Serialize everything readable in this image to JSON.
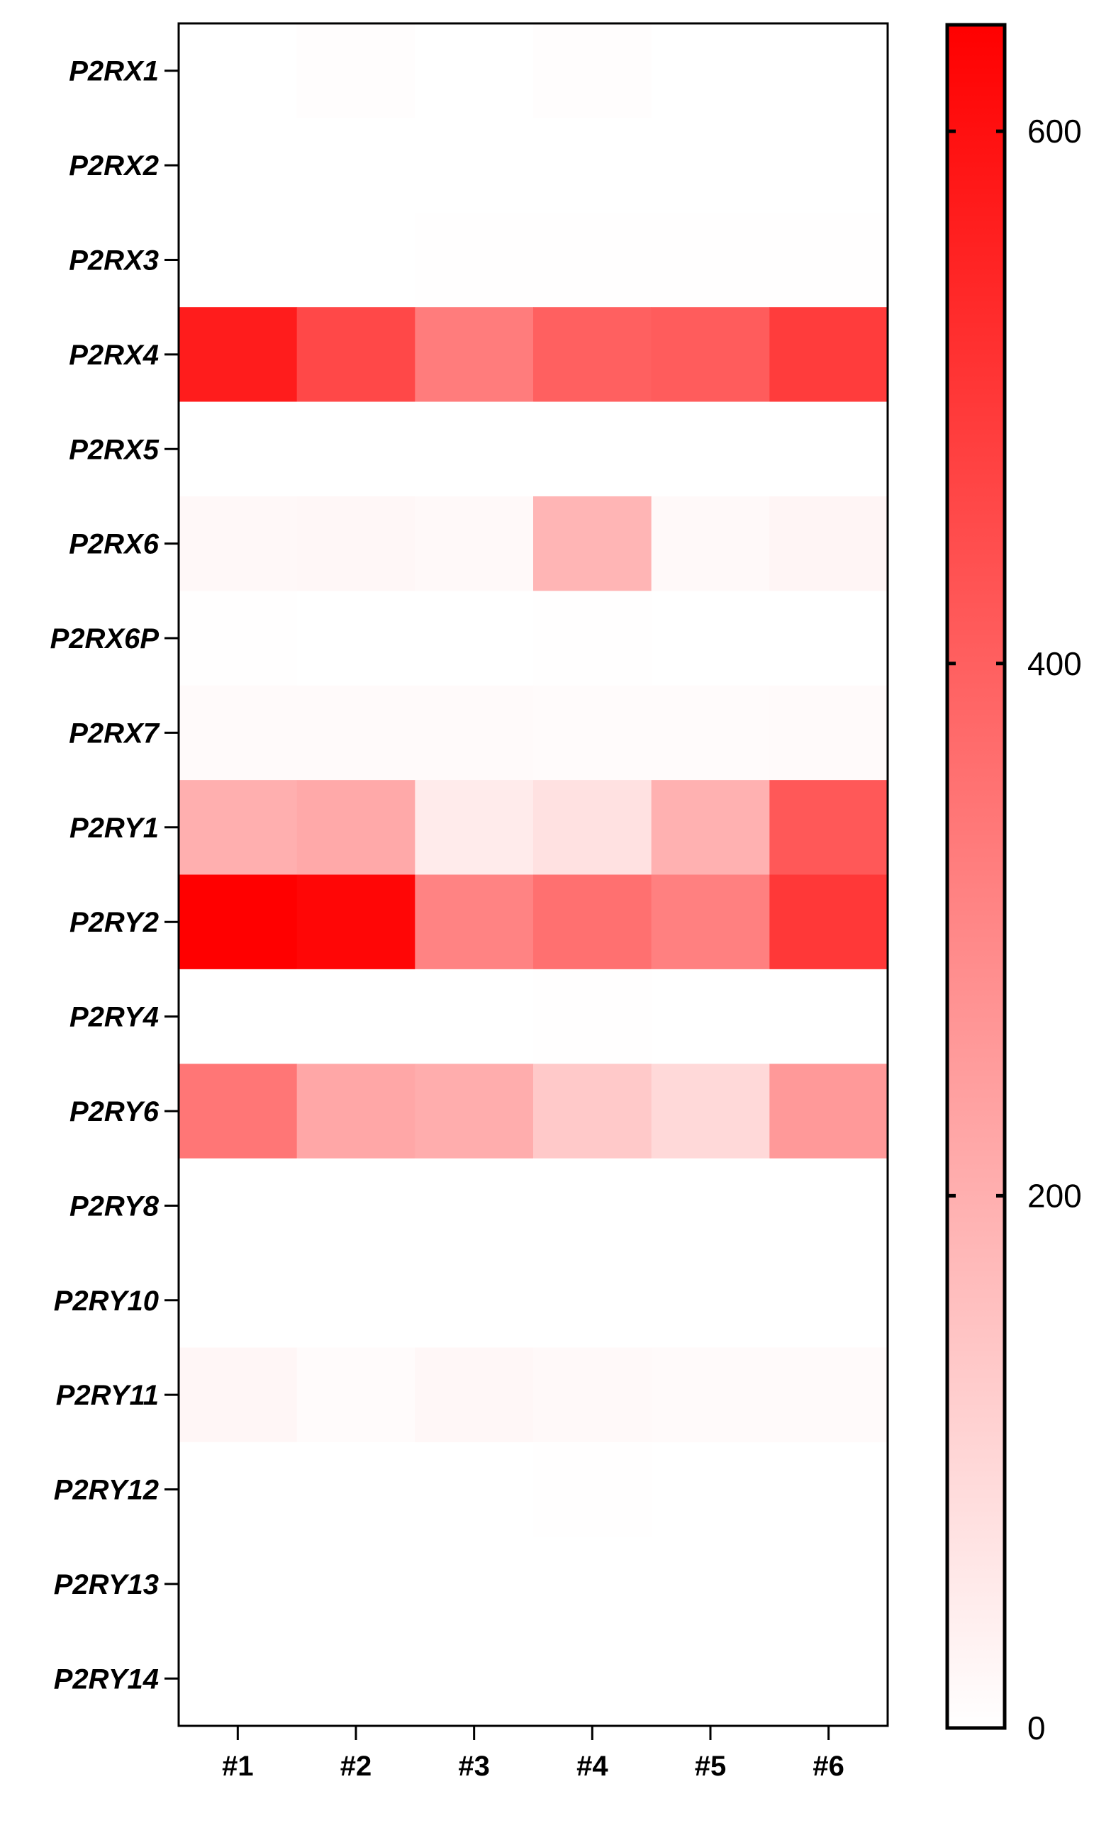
{
  "chart_data": {
    "type": "heatmap",
    "title": "",
    "xlabel": "",
    "ylabel": "",
    "columns": [
      "#1",
      "#2",
      "#3",
      "#4",
      "#5",
      "#6"
    ],
    "rows": [
      "P2RX1",
      "P2RX2",
      "P2RX3",
      "P2RX4",
      "P2RX5",
      "P2RX6",
      "P2RX6P",
      "P2RX7",
      "P2RY1",
      "P2RY2",
      "P2RY4",
      "P2RY6",
      "P2RY8",
      "P2RY10",
      "P2RY11",
      "P2RY12",
      "P2RY13",
      "P2RY14"
    ],
    "values": [
      [
        0,
        5,
        0,
        4,
        0,
        0
      ],
      [
        0,
        0,
        0,
        0,
        0,
        0
      ],
      [
        0,
        0,
        3,
        2,
        2,
        2
      ],
      [
        570,
        460,
        330,
        400,
        410,
        490
      ],
      [
        0,
        0,
        0,
        0,
        0,
        0
      ],
      [
        18,
        20,
        14,
        185,
        15,
        25
      ],
      [
        3,
        0,
        0,
        3,
        0,
        0
      ],
      [
        12,
        12,
        12,
        10,
        10,
        12
      ],
      [
        200,
        215,
        50,
        75,
        195,
        420
      ],
      [
        640,
        625,
        310,
        360,
        320,
        500
      ],
      [
        0,
        0,
        0,
        3,
        0,
        0
      ],
      [
        345,
        220,
        205,
        135,
        95,
        255
      ],
      [
        0,
        0,
        0,
        0,
        0,
        0
      ],
      [
        0,
        0,
        0,
        0,
        0,
        0
      ],
      [
        22,
        10,
        20,
        15,
        12,
        12
      ],
      [
        0,
        0,
        0,
        3,
        0,
        0
      ],
      [
        0,
        0,
        0,
        0,
        0,
        0
      ],
      [
        0,
        0,
        0,
        0,
        0,
        0
      ]
    ],
    "colorbar": {
      "min": 0,
      "max": 640,
      "ticks": [
        0,
        200,
        400,
        600
      ],
      "tick_labels": [
        "0",
        "200",
        "400",
        "600"
      ],
      "low_color": "#ffffff",
      "high_color": "#ff0000"
    },
    "grid": false,
    "legend": "colorbar-right"
  }
}
